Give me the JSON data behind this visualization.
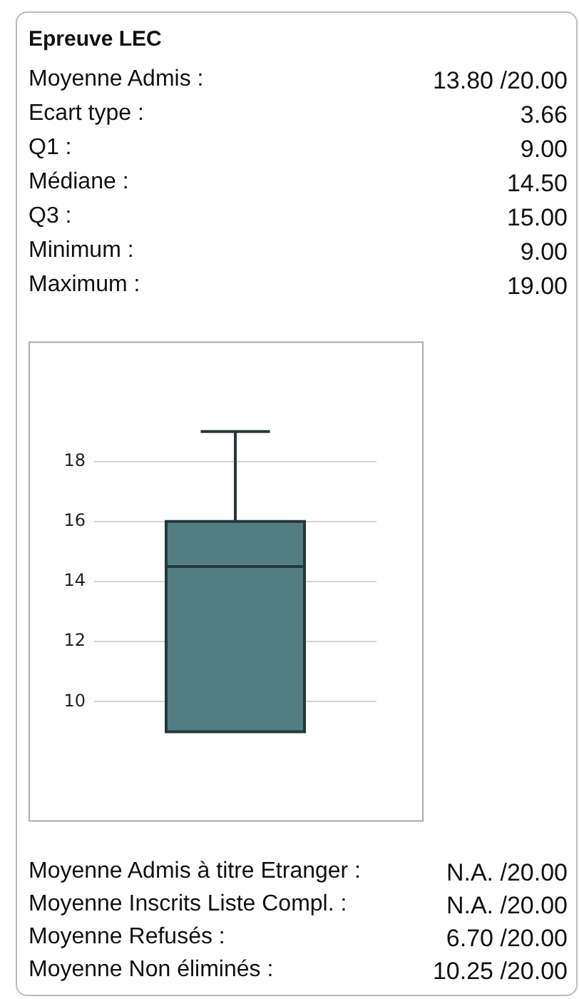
{
  "chart_data": {
    "type": "box",
    "title": "Epreuve LEC",
    "annotations": [
      "Moyenne Admis : 13.80 /20.00",
      "Ecart type : 3.66",
      "Q1 : 9.00",
      "Médiane : 14.50",
      "Q3 : 15.00",
      "Minimum : 9.00",
      "Maximum : 19.00",
      "Moyenne Admis à titre Etranger : N.A. /20.00",
      "Moyenne Inscrits Liste Compl. : N.A. /20.00",
      "Moyenne Refusés : 6.70 /20.00",
      "Moyenne Non éliminés : 10.25 /20.00"
    ],
    "categories": [
      null
    ],
    "boxes": [
      {
        "low": 9,
        "q1": 9,
        "median": 14.5,
        "q3": 16,
        "high": 19
      }
    ],
    "color": "#527e82",
    "ylim": [
      6,
      22
    ],
    "yticks": [
      10,
      12,
      14,
      16,
      18
    ],
    "grid": "y",
    "tick_labels": "y",
    "legend": false
  }
}
